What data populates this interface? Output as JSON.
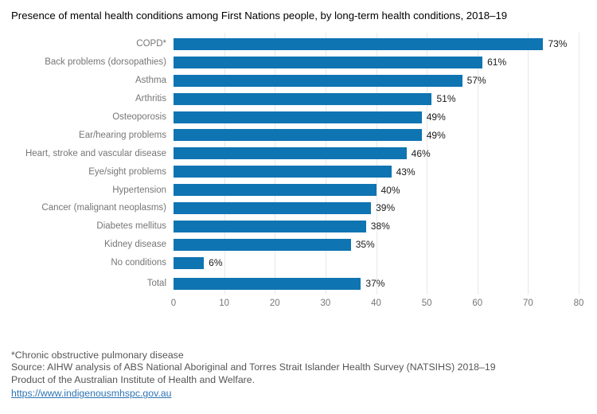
{
  "title": "Presence of mental health conditions among First Nations people, by long-term health conditions, 2018–19",
  "chart_data": {
    "type": "bar",
    "orientation": "horizontal",
    "title": "Presence of mental health conditions among First Nations people, by long-term health conditions, 2018–19",
    "categories": [
      "COPD*",
      "Back problems (dorsopathies)",
      "Asthma",
      "Arthritis",
      "Osteoporosis",
      "Ear/hearing problems",
      "Heart, stroke and vascular disease",
      "Eye/sight problems",
      "Hypertension",
      "Cancer (malignant neoplasms)",
      "Diabetes mellitus",
      "Kidney disease",
      "No conditions",
      "Total"
    ],
    "values": [
      73,
      61,
      57,
      51,
      49,
      49,
      46,
      43,
      40,
      39,
      38,
      35,
      6,
      37
    ],
    "value_labels": [
      "73%",
      "61%",
      "57%",
      "51%",
      "49%",
      "49%",
      "46%",
      "43%",
      "40%",
      "39%",
      "38%",
      "35%",
      "6%",
      "37%"
    ],
    "xlabel": "",
    "ylabel": "",
    "xlim": [
      0,
      80
    ],
    "xticks": [
      0,
      10,
      20,
      30,
      40,
      50,
      60,
      70,
      80
    ],
    "grid": "vertical",
    "legend": "none",
    "separated_last_row": true
  },
  "colors": {
    "bar": "#0f74b2",
    "category_label": "#767676",
    "tick_label": "#767676",
    "value_label": "#1a1a1a",
    "gridline": "#e8e8e8",
    "footer_text": "#555555",
    "link": "#2e74b5"
  },
  "footer": {
    "note": "*Chronic obstructive pulmonary disease",
    "source": "Source: AIHW analysis of ABS National Aboriginal and Torres Strait Islander Health Survey (NATSIHS) 2018–19",
    "product": "Product of the Australian Institute of Health and Welfare.",
    "link": "https://www.indigenousmhspc.gov.au"
  }
}
